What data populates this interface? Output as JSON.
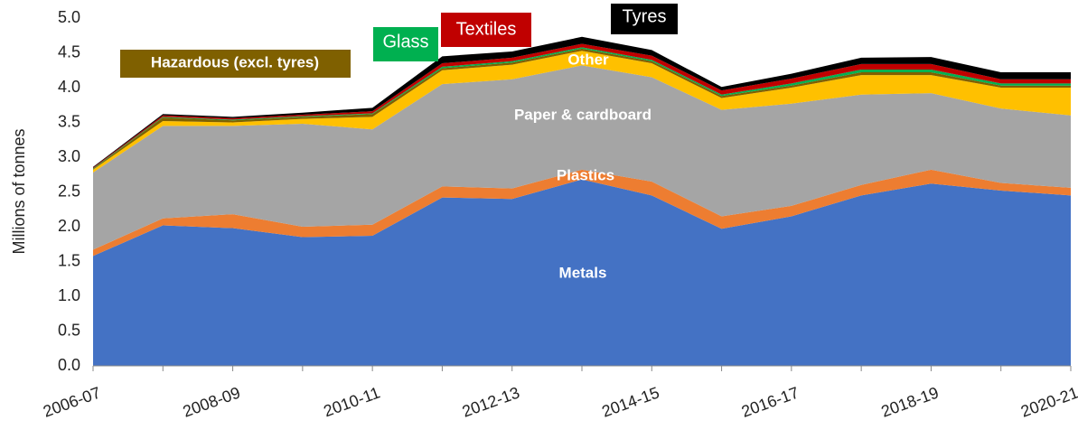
{
  "chart_data": {
    "type": "stacked_area",
    "y_label": "Millions of tonnes",
    "categories": [
      "2006-07",
      null,
      "2008-09",
      null,
      "2010-11",
      null,
      "2012-13",
      null,
      "2014-15",
      null,
      "2016-17",
      null,
      "2018-19",
      null,
      "2020-21"
    ],
    "series": [
      {
        "name": "Metals",
        "color": "#4472c4",
        "values": [
          1.58,
          2.02,
          1.98,
          1.85,
          1.87,
          2.42,
          2.4,
          2.68,
          2.45,
          1.97,
          2.15,
          2.45,
          2.62,
          2.52,
          2.45
        ]
      },
      {
        "name": "Plastics",
        "color": "#ed7d31",
        "values": [
          0.09,
          0.1,
          0.2,
          0.15,
          0.16,
          0.16,
          0.15,
          0.14,
          0.2,
          0.18,
          0.15,
          0.15,
          0.2,
          0.11,
          0.11
        ]
      },
      {
        "name": "Paper & cardboard",
        "color": "#a5a5a5",
        "values": [
          1.11,
          1.33,
          1.27,
          1.48,
          1.37,
          1.47,
          1.57,
          1.5,
          1.5,
          1.53,
          1.47,
          1.3,
          1.1,
          1.07,
          1.04
        ]
      },
      {
        "name": "Other",
        "color": "#ffc000",
        "values": [
          0.04,
          0.07,
          0.05,
          0.07,
          0.18,
          0.2,
          0.21,
          0.21,
          0.2,
          0.17,
          0.23,
          0.28,
          0.26,
          0.3,
          0.4
        ]
      },
      {
        "name": "Hazardous (excl. tyres)",
        "color": "#7f6000",
        "values": [
          0.01,
          0.05,
          0.03,
          0.03,
          0.04,
          0.03,
          0.03,
          0.03,
          0.03,
          0.03,
          0.03,
          0.04,
          0.04,
          0.03,
          0.03
        ]
      },
      {
        "name": "Glass",
        "color": "#00b050",
        "values": [
          0.01,
          0.01,
          0.01,
          0.01,
          0.01,
          0.02,
          0.02,
          0.02,
          0.02,
          0.02,
          0.03,
          0.04,
          0.04,
          0.03,
          0.03
        ]
      },
      {
        "name": "Textiles",
        "color": "#c00000",
        "values": [
          0.01,
          0.02,
          0.02,
          0.02,
          0.03,
          0.05,
          0.05,
          0.05,
          0.06,
          0.06,
          0.07,
          0.08,
          0.08,
          0.06,
          0.06
        ]
      },
      {
        "name": "Tyres",
        "color": "#000000",
        "values": [
          0.01,
          0.02,
          0.02,
          0.03,
          0.05,
          0.1,
          0.09,
          0.1,
          0.08,
          0.05,
          0.07,
          0.09,
          0.1,
          0.1,
          0.1
        ]
      }
    ],
    "ylim": [
      0,
      5
    ],
    "yticks": [
      {
        "value": 0,
        "label": "0.0"
      },
      0.5,
      {
        "value": 1,
        "label": "1.0"
      },
      1.5,
      {
        "value": 2,
        "label": "2.0"
      },
      2.5,
      {
        "value": 3,
        "label": "3.0"
      },
      3.5,
      {
        "value": 4,
        "label": "4.0"
      },
      4.5,
      {
        "value": 5,
        "label": "5.0"
      }
    ],
    "grid": false
  }
}
